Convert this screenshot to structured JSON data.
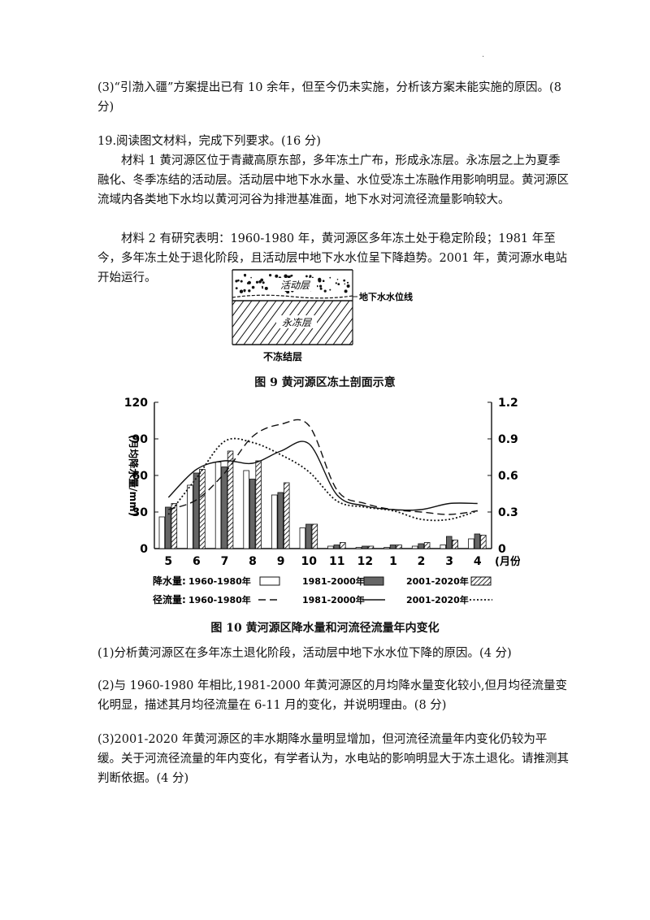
{
  "page": {
    "corner_mark": ".",
    "q_prev3": "(3)“引渤入疆”方案提出已有 10 余年，但至今仍未实施，分析该方案未能实施的原因。(8 分)",
    "q19_title": "19.阅读图文材料，完成下列要求。(16 分)",
    "material1": "材料 1  黄河源区位于青藏高原东部，多年冻土广布，形成永冻层。永冻层之上为夏季融化、冬季冻结的活动层。活动层中地下水水量、水位受冻土冻融作用影响明显。黄河源区流域内各类地下水均以黄河河谷为排泄基准面，地下水对河流径流量影响较大。",
    "material2": "材料 2  有研究表明：1960-1980 年，黄河源区多年冻土处于稳定阶段；1981 年至今，多年冻土处于退化阶段，且活动层中地下水水位呈下降趋势。2001 年，黄河源水电站开始运行。",
    "q1": "(1)分析黄河源区在多年冻土退化阶段，活动层中地下水水位下降的原因。(4 分)",
    "q2": "(2)与 1960-1980 年相比,1981-2000 年黄河源区的月均降水量变化较小,但月均径流量变化明显，描述其月均径流量在 6-11 月的变化，并说明理由。(8 分)",
    "q3": "(3)2001-2020 年黄河源区的丰水期降水量明显增加，但河流径流量年内变化仍较为平缓。关于河流径流量的年内变化，有学者认为，水电站的影响明显大于冻土退化。请推测其判断依据。(4 分)"
  },
  "figure9": {
    "caption": "图 9  黄河源区冻土剖面示意",
    "label_active": "活动层",
    "label_groundwater": "地下水水位线",
    "label_permafrost": "永冻层",
    "label_unfrozen": "不冻结层"
  },
  "figure10": {
    "caption": "图 10  黄河源区降水量和河流径流量年内变化",
    "legend": {
      "precip_title": "降水量:",
      "runoff_title": "径流量:",
      "p1": "1960-1980年",
      "p2": "1981-2000年",
      "p3": "2001-2020年",
      "r1": "1960-1980年",
      "r2": "1981-2000年",
      "r3": "2001-2020年"
    }
  },
  "chart_data": {
    "type": "bar",
    "title": "图 10  黄河源区降水量和河流径流量年内变化",
    "categories": [
      "5",
      "6",
      "7",
      "8",
      "9",
      "10",
      "11",
      "12",
      "1",
      "2",
      "3",
      "4"
    ],
    "xlabel": "(月份)",
    "ylabel": "(月均降水量/mm)",
    "ylim": [
      0,
      120
    ],
    "yticks": [
      "0",
      "30",
      "60",
      "90",
      "120"
    ],
    "y2label": "(月均径流量/10⁹m³)",
    "y2lim": [
      0,
      1.2
    ],
    "y2ticks": [
      "0",
      "0.3",
      "0.6",
      "0.9",
      "1.2"
    ],
    "series": [
      {
        "name": "降水量 1960-1980年",
        "kind": "bar",
        "axis": "left",
        "color": "#ffffff",
        "values": [
          26,
          52,
          71,
          64,
          44,
          17,
          2,
          1,
          1,
          2,
          3,
          8
        ]
      },
      {
        "name": "降水量 1981-2000年",
        "kind": "bar",
        "axis": "left",
        "color": "#666666",
        "values": [
          34,
          62,
          67,
          57,
          46,
          20,
          3,
          2,
          3,
          4,
          10,
          12
        ]
      },
      {
        "name": "降水量 2001-2020年",
        "kind": "bar",
        "axis": "left",
        "color": "hatch",
        "values": [
          37,
          65,
          80,
          72,
          54,
          20,
          5,
          2,
          3,
          5,
          7,
          11
        ]
      },
      {
        "name": "径流量 1960-1980年",
        "kind": "line",
        "axis": "right",
        "style": "dashed",
        "values": [
          0.32,
          0.4,
          0.62,
          0.92,
          1.02,
          1.01,
          0.48,
          0.37,
          0.32,
          0.3,
          0.28,
          0.31
        ]
      },
      {
        "name": "径流量 1981-2000年",
        "kind": "line",
        "axis": "right",
        "style": "solid",
        "values": [
          0.42,
          0.65,
          0.72,
          0.7,
          0.8,
          0.86,
          0.44,
          0.35,
          0.32,
          0.32,
          0.37,
          0.37
        ]
      },
      {
        "name": "径流量 2001-2020年",
        "kind": "line",
        "axis": "right",
        "style": "dotted",
        "values": [
          0.28,
          0.58,
          0.88,
          0.87,
          0.77,
          0.63,
          0.39,
          0.34,
          0.31,
          0.24,
          0.24,
          0.31
        ]
      }
    ],
    "grid": false,
    "legend_position": "bottom"
  }
}
